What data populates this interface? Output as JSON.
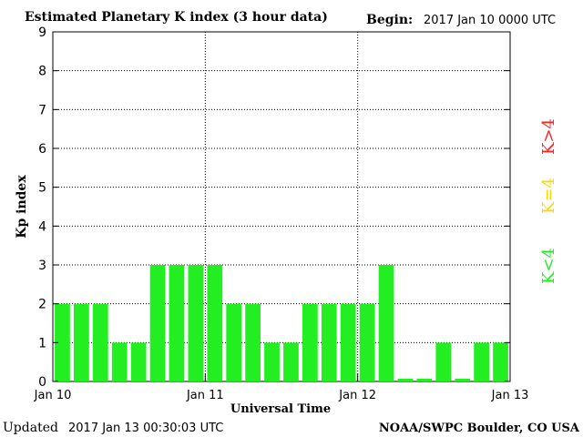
{
  "header": {
    "title": "Estimated Planetary K index (3 hour data)",
    "begin_label": "Begin:",
    "begin_value": "2017 Jan 10 0000 UTC"
  },
  "footer": {
    "updated_label": "Updated",
    "updated_value": "2017 Jan 13 00:30:03 UTC",
    "source": "NOAA/SWPC Boulder, CO USA"
  },
  "legend": {
    "high": "K>4",
    "equal": "K=4",
    "low": "K<4",
    "colors": {
      "high": "#ff2020",
      "equal": "#ffd700",
      "low": "#22ee22"
    }
  },
  "chart_data": {
    "type": "bar",
    "title": "Estimated Planetary K index (3 hour data)",
    "xlabel": "Universal Time",
    "ylabel": "Kp index",
    "ylim": [
      0,
      9
    ],
    "yticks": [
      "0",
      "1",
      "2",
      "3",
      "4",
      "5",
      "6",
      "7",
      "8",
      "9"
    ],
    "xticks": [
      "Jan 10",
      "Jan 11",
      "Jan 12",
      "Jan 13"
    ],
    "grid": true,
    "bar_color": "#22ee22",
    "categories": [
      "2017-01-10 00",
      "2017-01-10 03",
      "2017-01-10 06",
      "2017-01-10 09",
      "2017-01-10 12",
      "2017-01-10 15",
      "2017-01-10 18",
      "2017-01-10 21",
      "2017-01-11 00",
      "2017-01-11 03",
      "2017-01-11 06",
      "2017-01-11 09",
      "2017-01-11 12",
      "2017-01-11 15",
      "2017-01-11 18",
      "2017-01-11 21",
      "2017-01-12 00",
      "2017-01-12 03",
      "2017-01-12 06",
      "2017-01-12 09",
      "2017-01-12 12",
      "2017-01-12 15",
      "2017-01-12 18",
      "2017-01-12 21"
    ],
    "values": [
      2,
      2,
      2,
      1,
      1,
      3,
      3,
      3,
      3,
      2,
      2,
      1,
      1,
      2,
      2,
      2,
      2,
      3,
      0,
      0,
      1,
      0,
      1,
      1
    ]
  }
}
